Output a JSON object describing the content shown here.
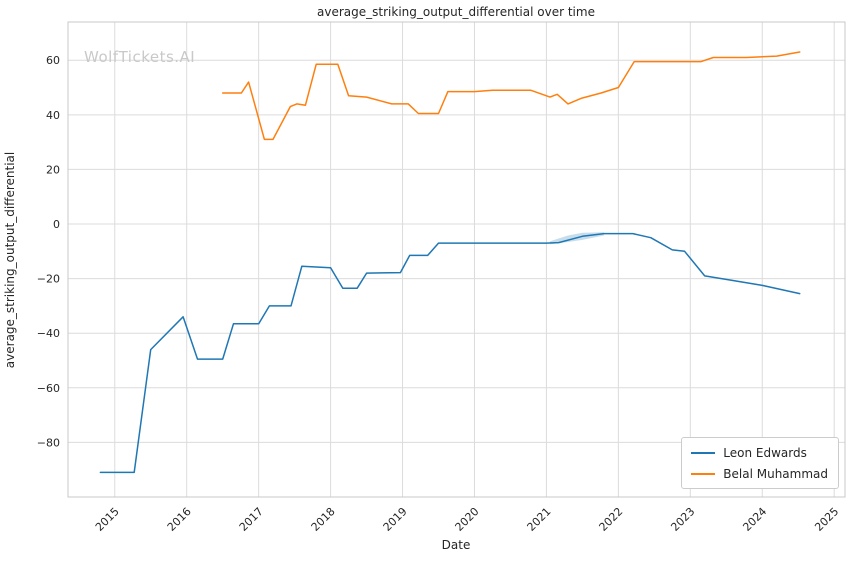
{
  "chart_data": {
    "type": "line",
    "title": "average_striking_output_differential over time",
    "xlabel": "Date",
    "ylabel": "average_striking_output_differential",
    "watermark": "WolfTickets.AI",
    "xlim": [
      2014.35,
      2025.15
    ],
    "ylim": [
      -100,
      74
    ],
    "grid": true,
    "legend_position": "lower right",
    "xticks": [
      2015,
      2016,
      2017,
      2018,
      2019,
      2020,
      2021,
      2022,
      2023,
      2024,
      2025
    ],
    "xtick_labels": [
      "2015",
      "2016",
      "2017",
      "2018",
      "2019",
      "2020",
      "2021",
      "2022",
      "2023",
      "2024",
      "2025"
    ],
    "yticks": [
      -80,
      -60,
      -40,
      -20,
      0,
      20,
      40,
      60
    ],
    "ytick_labels": [
      "−80",
      "−60",
      "−40",
      "−20",
      "0",
      "20",
      "40",
      "60"
    ],
    "series": [
      {
        "name": "Leon Edwards",
        "color": "#1f77b4",
        "x": [
          2014.8,
          2015.27,
          2015.5,
          2015.95,
          2016.15,
          2016.5,
          2016.65,
          2017.0,
          2017.15,
          2017.45,
          2017.6,
          2018.0,
          2018.17,
          2018.37,
          2018.5,
          2018.97,
          2019.1,
          2019.35,
          2019.5,
          2020.0,
          2020.5,
          2021.0,
          2021.17,
          2021.5,
          2021.8,
          2022.2,
          2022.45,
          2022.75,
          2022.92,
          2023.2,
          2023.55,
          2024.0,
          2024.52
        ],
        "y": [
          -91,
          -91,
          -46,
          -34,
          -49.5,
          -49.5,
          -36.5,
          -36.5,
          -30,
          -30,
          -15.5,
          -16,
          -23.5,
          -23.5,
          -18,
          -17.8,
          -11.5,
          -11.5,
          -7,
          -7,
          -7,
          -7,
          -6.8,
          -4.5,
          -3.5,
          -3.5,
          -5,
          -9.5,
          -10,
          -19,
          -20.5,
          -22.5,
          -25.5
        ]
      },
      {
        "name": "Belal Muhammad",
        "color": "#ff7f0e",
        "x": [
          2016.5,
          2016.76,
          2016.86,
          2017.08,
          2017.2,
          2017.44,
          2017.53,
          2017.65,
          2017.8,
          2018.1,
          2018.25,
          2018.5,
          2018.85,
          2019.08,
          2019.22,
          2019.5,
          2019.63,
          2020.0,
          2020.25,
          2020.78,
          2021.05,
          2021.15,
          2021.3,
          2021.48,
          2021.76,
          2022.0,
          2022.22,
          2022.6,
          2023.15,
          2023.32,
          2023.78,
          2024.2,
          2024.52
        ],
        "y": [
          48,
          48,
          52,
          31,
          31,
          43,
          44,
          43.5,
          58.5,
          58.5,
          47,
          46.5,
          44,
          44,
          40.5,
          40.5,
          48.5,
          48.5,
          49,
          49,
          46.5,
          47.5,
          44,
          46,
          48,
          50,
          59.5,
          59.5,
          59.5,
          61,
          61,
          61.5,
          63
        ]
      }
    ],
    "band": {
      "series": "Leon Edwards",
      "color": "#1f77b4",
      "x": [
        2021.05,
        2021.3,
        2021.5,
        2021.8
      ],
      "upper": [
        -6.3,
        -4.2,
        -3.2,
        -3.0
      ],
      "lower": [
        -7.4,
        -6.6,
        -5.8,
        -4.2
      ]
    }
  }
}
